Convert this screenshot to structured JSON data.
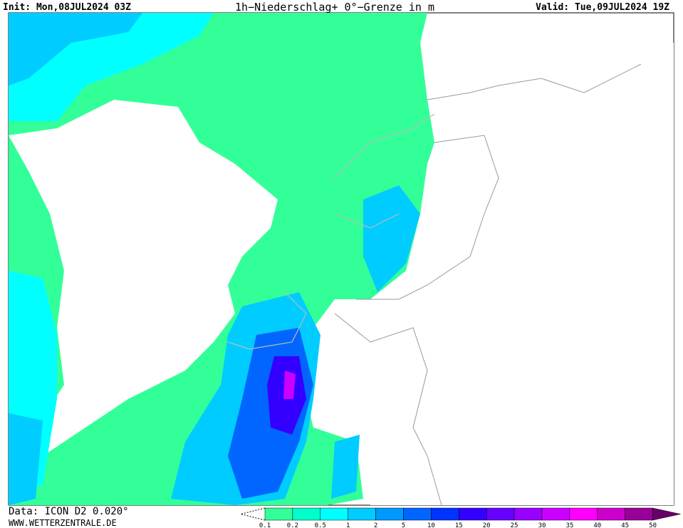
{
  "header": {
    "init": "Init: Mon,08JUL2024 03Z",
    "title": "1h−Niederschlag+ 0°−Grenze in m",
    "valid": "Valid: Tue,09JUL2024 19Z"
  },
  "footer": {
    "data": "Data: ICON D2 0.020°",
    "site": "WWW.WETTERZENTRALE.DE"
  },
  "legend": {
    "labels": [
      0.1,
      0.2,
      0.5,
      1,
      2,
      5,
      10,
      15,
      20,
      25,
      30,
      35,
      40,
      45,
      50
    ],
    "colors": [
      "#33ff99",
      "#00ffcc",
      "#00ffff",
      "#00ccff",
      "#0099ff",
      "#0066ff",
      "#0033ff",
      "#3300ff",
      "#6600ff",
      "#9900ff",
      "#cc00ff",
      "#ff00ff",
      "#cc00cc",
      "#990099",
      "#660066"
    ]
  }
}
